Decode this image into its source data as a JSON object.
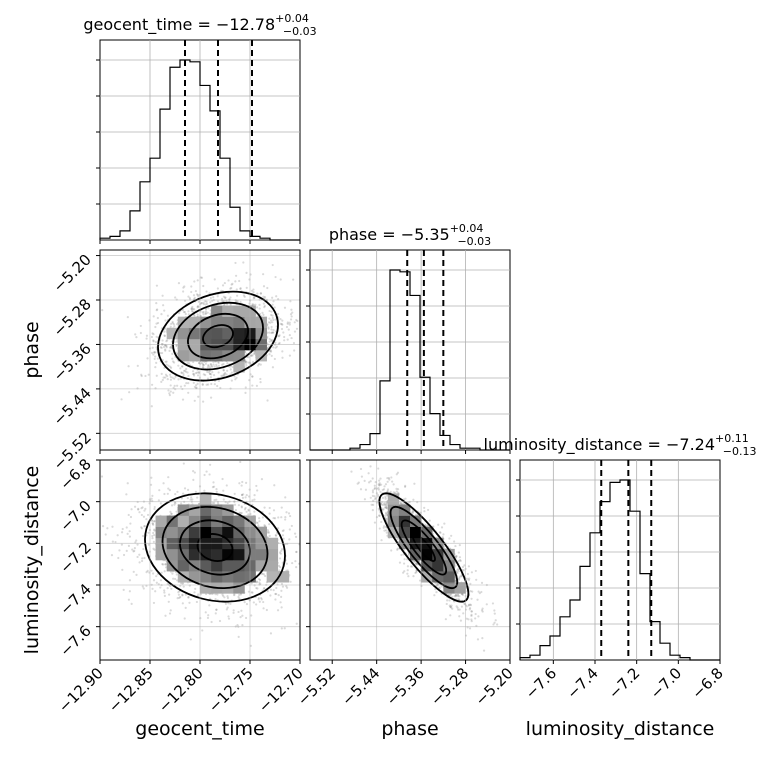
{
  "chart_data": {
    "type": "corner",
    "parameters": [
      {
        "key": "geocent_time",
        "label": "geocent_time",
        "title_name": "geocent_time",
        "title_value": "−12.78",
        "title_plus": "+0.04",
        "title_minus": "−0.03",
        "median": -12.782,
        "q16": -12.815,
        "q84": -12.748,
        "range": [
          -12.9,
          -12.7
        ],
        "ticks": [
          -12.9,
          -12.85,
          -12.8,
          -12.75,
          -12.7
        ],
        "tick_labels": [
          "−12.90",
          "−12.85",
          "−12.80",
          "−12.75",
          "−12.70"
        ],
        "hist_edges_start": -12.9,
        "hist_bin_width": 0.01,
        "hist_counts": [
          1,
          2,
          5,
          16,
          32,
          45,
          72,
          95,
          99,
          98,
          85,
          71,
          45,
          18,
          5,
          2,
          1,
          0,
          0,
          0
        ]
      },
      {
        "key": "phase",
        "label": "phase",
        "title_name": "phase",
        "title_value": "−5.35",
        "title_plus": "+0.04",
        "title_minus": "−0.03",
        "median": -5.355,
        "q16": -5.385,
        "q84": -5.32,
        "range": [
          -5.56,
          -5.2
        ],
        "ticks": [
          -5.52,
          -5.44,
          -5.36,
          -5.28,
          -5.2
        ],
        "tick_labels": [
          "−5.52",
          "−5.44",
          "−5.36",
          "−5.28",
          "−5.20"
        ],
        "hist_edges_start": -5.56,
        "hist_bin_width": 0.018,
        "hist_counts": [
          0,
          0,
          0,
          0,
          1,
          3,
          9,
          38,
          99,
          98,
          85,
          40,
          20,
          8,
          3,
          1,
          1,
          0,
          0,
          0
        ]
      },
      {
        "key": "luminosity_distance",
        "label": "luminosity_distance",
        "title_name": "luminosity_distance",
        "title_value": "−7.24",
        "title_plus": "+0.11",
        "title_minus": "−0.13",
        "median": -7.24,
        "q16": -7.37,
        "q84": -7.13,
        "range": [
          -7.76,
          -6.8
        ],
        "ticks": [
          -7.6,
          -7.4,
          -7.2,
          -7.0,
          -6.8
        ],
        "tick_labels": [
          "−7.6",
          "−7.4",
          "−7.2",
          "−7.0",
          "−6.8"
        ],
        "y_ticks": [
          -7.6,
          -7.4,
          -7.2,
          -7.0,
          -6.8
        ],
        "y_tick_labels": [
          "−7.6",
          "−7.4",
          "−7.2",
          "−7.0",
          "−6.8"
        ],
        "y_range": [
          -7.76,
          -6.8
        ],
        "hist_edges_start": -7.76,
        "hist_bin_width": 0.048,
        "hist_counts": [
          1,
          2,
          6,
          10,
          18,
          25,
          39,
          53,
          66,
          74,
          75,
          62,
          36,
          16,
          7,
          2,
          1,
          0,
          0,
          0
        ]
      }
    ],
    "phase_y_ticks": [
      -5.52,
      -5.44,
      -5.36,
      -5.28,
      -5.2
    ],
    "phase_y_tick_labels": [
      "−5.52",
      "−5.44",
      "−5.36",
      "−5.28",
      "−5.20"
    ],
    "phase_y_range": [
      -5.55,
      -5.19
    ],
    "pairs": [
      {
        "x": "geocent_time",
        "y": "phase",
        "mean": [
          -12.782,
          -5.345
        ],
        "sd": [
          0.03,
          0.04
        ],
        "rho": 0.25,
        "secondary_mode": [
          -12.752,
          -5.355
        ]
      },
      {
        "x": "geocent_time",
        "y": "luminosity_distance",
        "mean": [
          -12.785,
          -7.22
        ],
        "sd": [
          0.035,
          0.13
        ],
        "rho": -0.15,
        "secondary_mode": null
      },
      {
        "x": "phase",
        "y": "luminosity_distance",
        "mean": [
          -5.355,
          -7.22
        ],
        "sd": [
          0.04,
          0.13
        ],
        "rho": -0.85,
        "secondary_mode": null
      }
    ],
    "grid": true,
    "contour_levels": [
      "0.5-sigma",
      "1-sigma",
      "1.5-sigma",
      "2-sigma"
    ]
  }
}
